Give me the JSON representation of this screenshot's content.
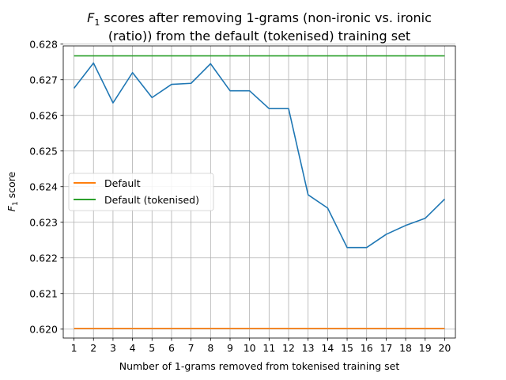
{
  "chart_data": {
    "type": "line",
    "title_prefix": "F",
    "title_sub": "1",
    "title_line1_rest": " scores after removing 1-grams (non-ironic vs. ironic",
    "title_line2": "(ratio)) from the default (tokenised) training set",
    "xlabel": "Number of 1-grams removed from tokenised training set",
    "ylabel_prefix": "F",
    "ylabel_sub": "1",
    "ylabel_rest": " score",
    "x": [
      1,
      2,
      3,
      4,
      5,
      6,
      7,
      8,
      9,
      10,
      11,
      12,
      13,
      14,
      15,
      16,
      17,
      18,
      19,
      20
    ],
    "xlim": [
      0.45,
      20.55
    ],
    "ylim": [
      0.61975,
      0.62795
    ],
    "yticks": [
      "0.620",
      "0.621",
      "0.622",
      "0.623",
      "0.624",
      "0.625",
      "0.626",
      "0.627",
      "0.628"
    ],
    "grid": true,
    "legend_position": "center-left",
    "series": [
      {
        "name": "",
        "color": "#1f77b4",
        "in_legend": false,
        "values": [
          0.62676,
          0.62747,
          0.62635,
          0.6272,
          0.6265,
          0.62687,
          0.6269,
          0.62745,
          0.62669,
          0.62669,
          0.62619,
          0.62619,
          0.62377,
          0.6234,
          0.62229,
          0.62229,
          0.62266,
          0.62291,
          0.62311,
          0.62365
        ]
      },
      {
        "name": "Default",
        "color": "#ff7f0e",
        "in_legend": true,
        "values": [
          0.62002,
          0.62002,
          0.62002,
          0.62002,
          0.62002,
          0.62002,
          0.62002,
          0.62002,
          0.62002,
          0.62002,
          0.62002,
          0.62002,
          0.62002,
          0.62002,
          0.62002,
          0.62002,
          0.62002,
          0.62002,
          0.62002,
          0.62002
        ]
      },
      {
        "name": "Default (tokenised)",
        "color": "#2ca02c",
        "in_legend": true,
        "values": [
          0.62767,
          0.62767,
          0.62767,
          0.62767,
          0.62767,
          0.62767,
          0.62767,
          0.62767,
          0.62767,
          0.62767,
          0.62767,
          0.62767,
          0.62767,
          0.62767,
          0.62767,
          0.62767,
          0.62767,
          0.62767,
          0.62767,
          0.62767
        ]
      }
    ]
  }
}
